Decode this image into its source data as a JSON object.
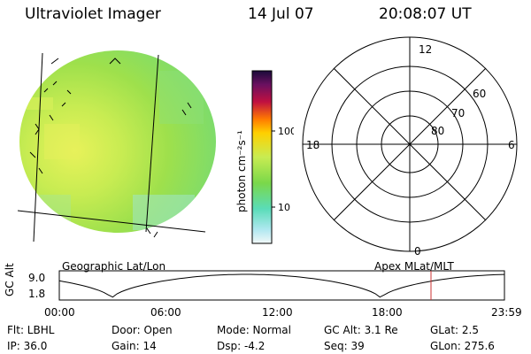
{
  "header": {
    "instrument": "Ultraviolet Imager",
    "date": "14 Jul 07",
    "time": "20:08:07 UT"
  },
  "colorbar": {
    "unit_label": "photon cm⁻²s⁻¹",
    "tick_100": "100",
    "tick_10": "10"
  },
  "polar_plot": {
    "mlt_labels": {
      "top": "12",
      "left": "18",
      "right": "6",
      "bottom": "0"
    },
    "lat_labels": [
      "60",
      "70",
      "80"
    ]
  },
  "timeline": {
    "left_caption": "Geographic Lat/Lon",
    "right_caption": "Apex  MLat/MLT",
    "y_axis_label": "GC Alt",
    "y_ticks": [
      "9.0",
      "1.8"
    ],
    "x_ticks": [
      "00:00",
      "06:00",
      "12:00",
      "18:00",
      "23:59"
    ]
  },
  "footer": {
    "row1": [
      {
        "id": "flt",
        "text": "Flt: LBHL"
      },
      {
        "id": "door",
        "text": "Door: Open"
      },
      {
        "id": "mode",
        "text": "Mode: Normal"
      },
      {
        "id": "gcalt",
        "text": "GC Alt: 3.1 Re"
      },
      {
        "id": "glat",
        "text": "GLat:   2.5"
      }
    ],
    "row2": [
      {
        "id": "ip",
        "text": "IP: 36.0"
      },
      {
        "id": "gain",
        "text": "Gain: 14"
      },
      {
        "id": "dsp",
        "text": "Dsp:    -4.2"
      },
      {
        "id": "seq",
        "text": "Seq: 39"
      },
      {
        "id": "glon",
        "text": "GLon: 275.6"
      }
    ]
  },
  "colors": {
    "disk_base": "#9fe04a",
    "marker_line": "#cc3333"
  }
}
